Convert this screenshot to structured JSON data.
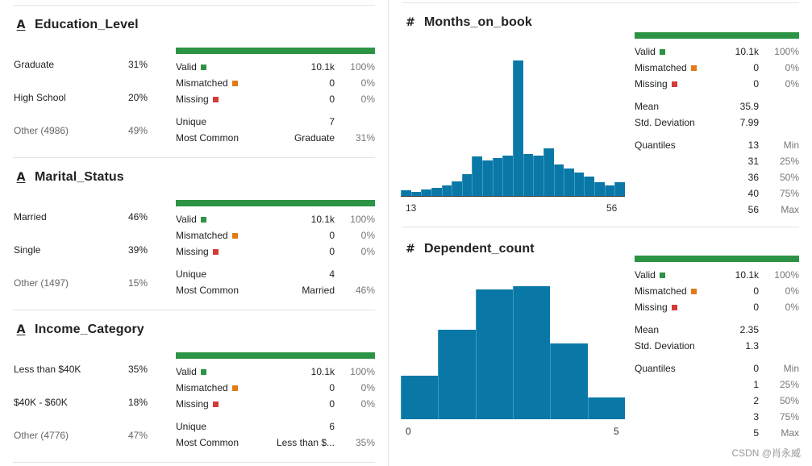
{
  "colors": {
    "valid": "#2d9446",
    "mismatched": "#e07b1a",
    "missing": "#d53a3a",
    "hist": "#0a78a6"
  },
  "left_panels": [
    {
      "icon": "A",
      "title": "Education_Level",
      "categories": [
        {
          "label": "Graduate",
          "pct": "31%"
        },
        {
          "label": "High School",
          "pct": "20%"
        },
        {
          "label": "Other (4986)",
          "pct": "49%"
        }
      ],
      "valid": {
        "label": "Valid",
        "value": "10.1k",
        "pct": "100%"
      },
      "mismatched": {
        "label": "Mismatched",
        "value": "0",
        "pct": "0%"
      },
      "missing": {
        "label": "Missing",
        "value": "0",
        "pct": "0%"
      },
      "unique": {
        "label": "Unique",
        "value": "7"
      },
      "most_common": {
        "label": "Most Common",
        "value": "Graduate",
        "pct": "31%"
      }
    },
    {
      "icon": "A",
      "title": "Marital_Status",
      "categories": [
        {
          "label": "Married",
          "pct": "46%"
        },
        {
          "label": "Single",
          "pct": "39%"
        },
        {
          "label": "Other (1497)",
          "pct": "15%"
        }
      ],
      "valid": {
        "label": "Valid",
        "value": "10.1k",
        "pct": "100%"
      },
      "mismatched": {
        "label": "Mismatched",
        "value": "0",
        "pct": "0%"
      },
      "missing": {
        "label": "Missing",
        "value": "0",
        "pct": "0%"
      },
      "unique": {
        "label": "Unique",
        "value": "4"
      },
      "most_common": {
        "label": "Most Common",
        "value": "Married",
        "pct": "46%"
      }
    },
    {
      "icon": "A",
      "title": "Income_Category",
      "categories": [
        {
          "label": "Less than $40K",
          "pct": "35%"
        },
        {
          "label": "$40K - $60K",
          "pct": "18%"
        },
        {
          "label": "Other (4776)",
          "pct": "47%"
        }
      ],
      "valid": {
        "label": "Valid",
        "value": "10.1k",
        "pct": "100%"
      },
      "mismatched": {
        "label": "Mismatched",
        "value": "0",
        "pct": "0%"
      },
      "missing": {
        "label": "Missing",
        "value": "0",
        "pct": "0%"
      },
      "unique": {
        "label": "Unique",
        "value": "6"
      },
      "most_common": {
        "label": "Most Common",
        "value": "Less than $...",
        "pct": "35%"
      }
    }
  ],
  "right_panels": [
    {
      "icon": "#",
      "title": "Months_on_book",
      "valid": {
        "label": "Valid",
        "value": "10.1k",
        "pct": "100%"
      },
      "mismatched": {
        "label": "Mismatched",
        "value": "0",
        "pct": "0%"
      },
      "missing": {
        "label": "Missing",
        "value": "0",
        "pct": "0%"
      },
      "mean": {
        "label": "Mean",
        "value": "35.9"
      },
      "std": {
        "label": "Std. Deviation",
        "value": "7.99"
      },
      "quantiles_label": "Quantiles",
      "quantiles": [
        {
          "value": "13",
          "name": "Min"
        },
        {
          "value": "31",
          "name": "25%"
        },
        {
          "value": "36",
          "name": "50%"
        },
        {
          "value": "40",
          "name": "75%"
        },
        {
          "value": "56",
          "name": "Max"
        }
      ]
    },
    {
      "icon": "#",
      "title": "Dependent_count",
      "valid": {
        "label": "Valid",
        "value": "10.1k",
        "pct": "100%"
      },
      "mismatched": {
        "label": "Mismatched",
        "value": "0",
        "pct": "0%"
      },
      "missing": {
        "label": "Missing",
        "value": "0",
        "pct": "0%"
      },
      "mean": {
        "label": "Mean",
        "value": "2.35"
      },
      "std": {
        "label": "Std. Deviation",
        "value": "1.3"
      },
      "quantiles_label": "Quantiles",
      "quantiles": [
        {
          "value": "0",
          "name": "Min"
        },
        {
          "value": "1",
          "name": "25%"
        },
        {
          "value": "2",
          "name": "50%"
        },
        {
          "value": "3",
          "name": "75%"
        },
        {
          "value": "5",
          "name": "Max"
        }
      ]
    }
  ],
  "chart_data": [
    {
      "type": "bar",
      "title": "Months_on_book",
      "x_range": [
        13,
        56
      ],
      "tick_labels": [
        "13",
        "56"
      ],
      "values": [
        4,
        3,
        5,
        6,
        8,
        11,
        16,
        29,
        26,
        28,
        30,
        100,
        31,
        30,
        35,
        23,
        20,
        17,
        14,
        10,
        8,
        10
      ]
    },
    {
      "type": "bar",
      "title": "Dependent_count",
      "x_range": [
        0,
        5
      ],
      "tick_labels": [
        "0",
        "5"
      ],
      "values": [
        30,
        61,
        89,
        91,
        52,
        15
      ]
    }
  ],
  "watermark": "CSDN @肖永威"
}
